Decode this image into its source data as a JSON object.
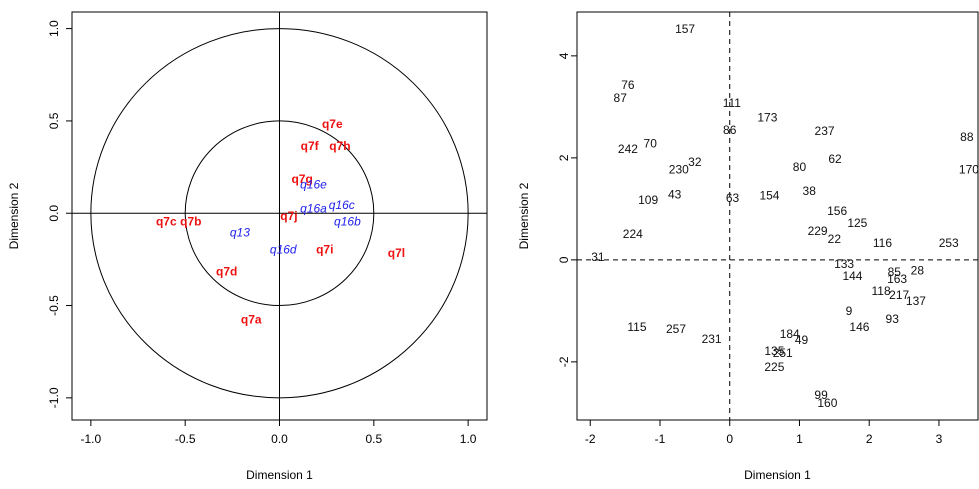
{
  "chart_data": [
    {
      "type": "scatter",
      "xlabel": "Dimension 1",
      "ylabel": "Dimension 2",
      "xlim": [
        -1.1,
        1.1
      ],
      "ylim": [
        -1.12,
        1.09
      ],
      "xticks": [
        {
          "value": -1,
          "label": "-1.0"
        },
        -0.5,
        {
          "value": 0,
          "label": "0.0"
        },
        0.5,
        {
          "value": 1,
          "label": "1.0"
        }
      ],
      "yticks": [
        {
          "value": -1,
          "label": "-1.0"
        },
        -0.5,
        {
          "value": 0,
          "label": "0.0"
        },
        0.5,
        {
          "value": 1,
          "label": "1.0"
        }
      ],
      "reference_lines": "solid",
      "circles": [
        1,
        0.5
      ],
      "labels": [
        "q7e",
        "q7f",
        "q7h",
        "q7g",
        "q16e",
        "q16a",
        "q16c",
        "q16b",
        "q7j",
        "q7c",
        "q7b",
        "q13",
        "q16d",
        "q7i",
        "q7l",
        "q7d",
        "q7a"
      ],
      "x": [
        0.28,
        0.16,
        0.32,
        0.12,
        0.18,
        0.18,
        0.33,
        0.36,
        0.05,
        -0.6,
        -0.47,
        -0.21,
        0.02,
        0.24,
        0.62,
        -0.28,
        -0.15
      ],
      "y": [
        0.48,
        0.36,
        0.36,
        0.18,
        0.15,
        0.02,
        0.04,
        -0.05,
        -0.02,
        -0.05,
        -0.05,
        -0.11,
        -0.2,
        -0.2,
        -0.22,
        -0.32,
        -0.58
      ],
      "colors": [
        "#ee1111",
        "#ee1111",
        "#ee1111",
        "#ee1111",
        "#2222ee",
        "#2222ee",
        "#2222ee",
        "#2222ee",
        "#ee1111",
        "#ee1111",
        "#ee1111",
        "#2222ee",
        "#2222ee",
        "#ee1111",
        "#ee1111",
        "#ee1111",
        "#ee1111"
      ]
    },
    {
      "type": "scatter",
      "xlabel": "Dimension 1",
      "ylabel": "Dimension 2",
      "xlim": [
        -2.19,
        3.56
      ],
      "ylim": [
        -3.14,
        4.86
      ],
      "xticks": [
        -2,
        -1,
        0,
        1,
        2,
        3
      ],
      "yticks": [
        -2,
        0,
        2,
        4
      ],
      "reference_lines": "dashed",
      "color": "#111111",
      "labels": [
        "157",
        "76",
        "87",
        "111",
        "173",
        "86",
        "237",
        "88",
        "242",
        "70",
        "62",
        "80",
        "170",
        "38",
        "125",
        "229",
        "22",
        "116",
        "253",
        "224",
        "31",
        "133",
        "144",
        "85",
        "28",
        "163",
        "118",
        "217",
        "137",
        "9",
        "93",
        "146",
        "184",
        "49",
        "115",
        "257",
        "231",
        "135",
        "251",
        "225",
        "99",
        "160",
        "154",
        "109",
        "43",
        "230",
        "32",
        "63",
        "156"
      ],
      "x": [
        -0.64,
        -1.46,
        -1.57,
        0.03,
        0.54,
        0,
        1.36,
        3.4,
        -1.46,
        -1.14,
        1.51,
        1.0,
        3.43,
        1.14,
        1.83,
        1.26,
        1.5,
        2.19,
        3.14,
        -1.39,
        -1.89,
        1.64,
        1.76,
        2.36,
        2.69,
        2.4,
        2.17,
        2.43,
        2.67,
        1.71,
        2.33,
        1.86,
        0.86,
        1.03,
        -1.33,
        -0.77,
        -0.26,
        0.64,
        0.76,
        0.64,
        1.31,
        1.4,
        0.57,
        -1.17,
        -0.79,
        -0.73,
        -0.5,
        0.04,
        1.54
      ],
      "y": [
        4.51,
        3.41,
        3.16,
        3.06,
        2.78,
        2.53,
        2.51,
        2.39,
        2.16,
        2.27,
        1.96,
        1.8,
        1.76,
        1.33,
        0.71,
        0.55,
        0.39,
        0.31,
        0.31,
        0.49,
        0.04,
        -0.1,
        -0.33,
        -0.25,
        -0.22,
        -0.39,
        -0.63,
        -0.71,
        -0.82,
        -1.02,
        -1.18,
        -1.33,
        -1.47,
        -1.59,
        -1.33,
        -1.37,
        -1.57,
        -1.8,
        -1.84,
        -2.12,
        -2.67,
        -2.82,
        1.25,
        1.16,
        1.27,
        1.76,
        1.9,
        1.2,
        0.94
      ]
    }
  ]
}
